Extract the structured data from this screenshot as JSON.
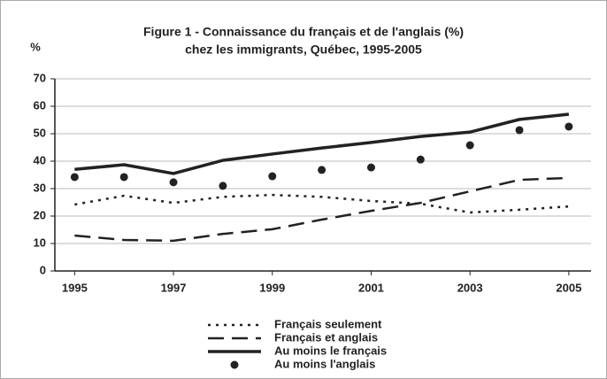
{
  "chart_data": {
    "type": "line",
    "title": [
      "Figure 1 - Connaissance du français et de l'anglais (%)",
      "chez les immigrants, Québec, 1995-2005"
    ],
    "y_label": "%",
    "x": [
      1995,
      1996,
      1997,
      1998,
      1999,
      2000,
      2001,
      2002,
      2003,
      2004,
      2005
    ],
    "xlim": [
      1994.6,
      2005.45
    ],
    "xticks": [
      1995,
      1997,
      1999,
      2001,
      2003,
      2005
    ],
    "ylim": [
      0,
      70
    ],
    "yticks": [
      0,
      10,
      20,
      30,
      40,
      50,
      60,
      70
    ],
    "grid": true,
    "legend": "bottom",
    "series": [
      {
        "name": "Français seulement",
        "color": "#222222",
        "style": "dotted",
        "values": [
          24.2,
          27.4,
          24.8,
          27,
          27.7,
          27,
          25.5,
          24.5,
          21.3,
          22.3,
          23.5
        ]
      },
      {
        "name": "Français et anglais",
        "color": "#222222",
        "style": "dashed",
        "values": [
          12.9,
          11.3,
          11,
          13.5,
          15.2,
          18.7,
          21.9,
          24.8,
          29,
          33.2,
          33.9
        ]
      },
      {
        "name": "Au moins le français",
        "color": "#222222",
        "style": "solid",
        "values": [
          37,
          38.7,
          35.5,
          40.3,
          42.6,
          44.8,
          46.8,
          49,
          50.6,
          55.2,
          57.1
        ]
      },
      {
        "name": "Au moins l'anglais",
        "color": "#222222",
        "style": "markers",
        "values": [
          34.2,
          34.2,
          32.3,
          31,
          34.5,
          36.8,
          37.7,
          40.6,
          45.8,
          51.3,
          52.6
        ]
      }
    ]
  }
}
